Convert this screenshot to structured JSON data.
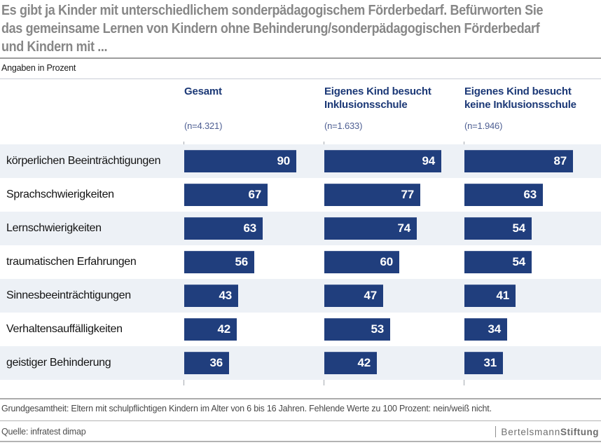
{
  "title": {
    "lines": [
      "Es gibt ja Kinder mit unterschiedlichem sonderpädagogischem Förderbedarf. Befürworten Sie",
      "das gemeinsame Lernen von Kindern ohne Behinderung/sonderpädagogischen Förderbedarf",
      "und Kindern mit ..."
    ],
    "full_text": "Es gibt ja Kinder mit unterschiedlichem sonderpädagogischem Förderbedarf. Befürworten Sie das gemeinsame Lernen von Kindern ohne Behinderung/sonderpädagogischen Förderbedarf und Kindern mit ..."
  },
  "subtitle": "Angaben in Prozent",
  "chart_data": {
    "type": "bar",
    "orientation": "horizontal",
    "title": "Es gibt ja Kinder mit unterschiedlichem sonderpädagogischem Förderbedarf. Befürworten Sie das gemeinsame Lernen von Kindern ohne Behinderung/sonderpädagogischen Förderbedarf und Kindern mit ...",
    "subtitle": "Angaben in Prozent",
    "categories": [
      "körperlichen Beeinträchtigungen",
      "Sprachschwierigkeiten",
      "Lernschwierigkeiten",
      "traumatischen Erfahrungen",
      "Sinnesbeeinträchtigungen",
      "Verhaltensauffälligkeiten",
      "geistiger Behinderung"
    ],
    "series": [
      {
        "name": "Gesamt",
        "name_lines": [
          "Gesamt"
        ],
        "n": "(n=4.321)",
        "values": [
          90,
          67,
          63,
          56,
          43,
          42,
          36
        ]
      },
      {
        "name": "Eigenes Kind besucht Inklusionsschule",
        "name_lines": [
          "Eigenes Kind besucht",
          "Inklusionsschule"
        ],
        "n": "(n=1.633)",
        "values": [
          94,
          77,
          74,
          60,
          47,
          53,
          42
        ]
      },
      {
        "name": "Eigenes Kind besucht keine Inklusionsschule",
        "name_lines": [
          "Eigenes Kind besucht",
          "keine Inklusionsschule"
        ],
        "n": "(n=1.946)",
        "values": [
          87,
          63,
          54,
          54,
          41,
          34,
          31
        ]
      }
    ],
    "xlim": [
      0,
      100
    ],
    "value_labels": "inside-right",
    "grid": false,
    "bar_color": "#203e7d",
    "alt_row_color": "#edf1f6"
  },
  "footer": {
    "note": "Grundgesamtheit: Eltern mit schulpflichtigen Kindern im Alter von 6 bis 16 Jahren. Fehlende Werte zu 100 Prozent: nein/weiß nicht.",
    "source": "Quelle: infratest dimap",
    "brand_part1": "Bertelsmann",
    "brand_part2": "Stiftung"
  },
  "colors": {
    "bar": "#203e7d",
    "header_text": "#1b3876",
    "sample_size_text": "#4e5f93",
    "title_text": "#878787",
    "alt_row": "#edf1f6",
    "value_text": "#ffffff"
  }
}
